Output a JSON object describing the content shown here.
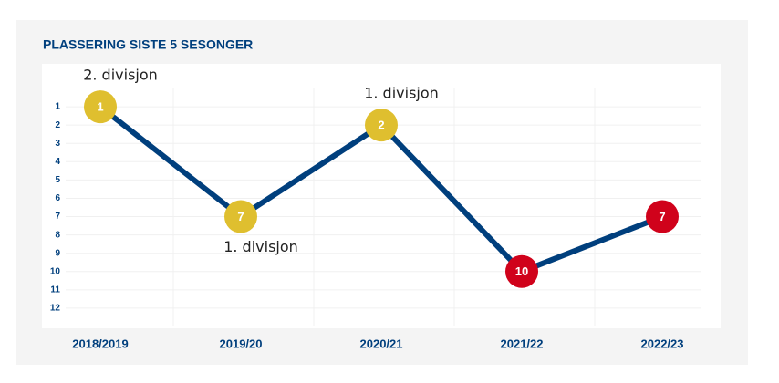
{
  "chart_data": {
    "type": "line",
    "title": "PLASSERING SISTE 5 SESONGER",
    "categories": [
      "2018/2019",
      "2019/20",
      "2020/21",
      "2021/22",
      "2022/23"
    ],
    "series": [
      {
        "values": [
          1,
          7,
          2,
          10,
          7
        ],
        "color": "#003f7d",
        "point_colors": [
          "#dfbf2f",
          "#dfbf2f",
          "#dfbf2f",
          "#d0021b",
          "#d0021b"
        ]
      }
    ],
    "ylim": [
      0,
      13
    ],
    "y_inverted": true,
    "yticks": [
      1,
      2,
      3,
      4,
      5,
      6,
      7,
      8,
      9,
      10,
      11,
      12
    ],
    "grid": true,
    "annotations": [
      {
        "text": "2. divisjon",
        "index": 0,
        "position": "above"
      },
      {
        "text": "1. divisjon",
        "index": 1,
        "position": "below"
      },
      {
        "text": "1. divisjon",
        "index": 2,
        "position": "above"
      }
    ]
  }
}
